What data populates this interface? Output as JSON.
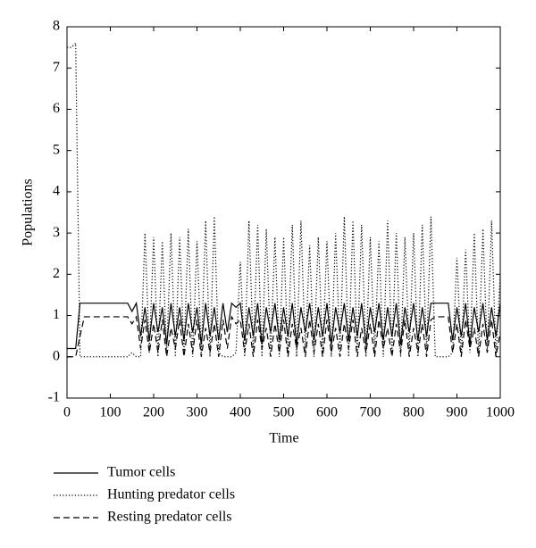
{
  "chart_data": {
    "type": "line",
    "xlabel": "Time",
    "ylabel": "Populations",
    "x": [
      0,
      10,
      20,
      30,
      40,
      50,
      60,
      70,
      80,
      90,
      100,
      110,
      120,
      130,
      140,
      150,
      160,
      170,
      180,
      190,
      200,
      210,
      220,
      230,
      240,
      250,
      260,
      270,
      280,
      290,
      300,
      310,
      320,
      330,
      340,
      350,
      360,
      370,
      380,
      390,
      400,
      410,
      420,
      430,
      440,
      450,
      460,
      470,
      480,
      490,
      500,
      510,
      520,
      530,
      540,
      550,
      560,
      570,
      580,
      590,
      600,
      610,
      620,
      630,
      640,
      650,
      660,
      670,
      680,
      690,
      700,
      710,
      720,
      730,
      740,
      750,
      760,
      770,
      780,
      790,
      800,
      810,
      820,
      830,
      840,
      850,
      860,
      870,
      880,
      890,
      900,
      910,
      920,
      930,
      940,
      950,
      960,
      970,
      980,
      990,
      1000
    ],
    "series": [
      {
        "name": "Tumor cells",
        "color": "#000000",
        "dash": "solid",
        "values": [
          0.2,
          0.2,
          0.2,
          1.3,
          1.3,
          1.3,
          1.3,
          1.3,
          1.3,
          1.3,
          1.3,
          1.3,
          1.3,
          1.3,
          1.3,
          1.1,
          1.3,
          0.5,
          1.2,
          0.4,
          1.3,
          0.6,
          1.2,
          0.3,
          1.3,
          0.5,
          1.2,
          0.4,
          1.3,
          0.6,
          1.2,
          0.3,
          1.3,
          0.5,
          1.2,
          0.4,
          1.3,
          0.6,
          1.3,
          1.2,
          1.3,
          0.4,
          1.2,
          0.5,
          1.3,
          0.3,
          1.2,
          0.6,
          1.3,
          0.4,
          1.2,
          0.5,
          1.3,
          0.3,
          1.2,
          0.6,
          1.3,
          0.4,
          1.2,
          0.5,
          1.3,
          0.3,
          1.2,
          0.6,
          1.3,
          0.4,
          1.2,
          0.5,
          1.3,
          0.3,
          1.2,
          0.6,
          1.3,
          0.4,
          1.2,
          0.5,
          1.3,
          0.3,
          1.2,
          0.6,
          1.3,
          0.4,
          1.2,
          0.5,
          1.3,
          1.3,
          1.3,
          1.3,
          1.3,
          0.4,
          1.2,
          0.5,
          1.3,
          0.3,
          1.2,
          0.6,
          1.3,
          0.4,
          1.2,
          0.5,
          1.3
        ]
      },
      {
        "name": "Hunting predator cells",
        "color": "#000000",
        "dash": "dotted",
        "values": [
          7.5,
          7.5,
          7.6,
          0,
          0,
          0,
          0,
          0,
          0,
          0,
          0,
          0,
          0,
          0,
          0,
          0.1,
          0,
          0,
          3.0,
          0.1,
          2.9,
          0,
          2.8,
          0.1,
          3.0,
          0,
          2.9,
          0.1,
          3.1,
          0,
          2.8,
          0.1,
          3.3,
          0,
          3.4,
          0.1,
          0,
          0,
          0,
          0.1,
          2.3,
          0,
          3.3,
          0.1,
          3.2,
          0,
          3.1,
          0.1,
          2.9,
          0,
          2.9,
          0.1,
          3.2,
          0,
          3.3,
          0.1,
          2.7,
          0,
          2.9,
          0.1,
          2.8,
          0,
          3.0,
          0.1,
          3.4,
          0,
          3.3,
          0.1,
          3.2,
          0,
          2.9,
          0.1,
          2.8,
          0,
          3.3,
          0.1,
          3.0,
          0,
          2.9,
          0.1,
          3.0,
          0,
          3.2,
          0.1,
          3.4,
          0,
          0,
          0,
          0,
          0.1,
          2.4,
          0,
          2.6,
          0.1,
          3.0,
          0,
          3.1,
          0.1,
          3.3,
          0,
          2.0
        ]
      },
      {
        "name": "Resting predator cells",
        "color": "#000000",
        "dash": "dashed",
        "values": [
          0,
          0,
          0,
          0.5,
          0.97,
          0.97,
          0.97,
          0.97,
          0.97,
          0.97,
          0.97,
          0.97,
          0.97,
          0.97,
          0.97,
          0.8,
          0.97,
          0.2,
          0.9,
          0.1,
          0.8,
          0.1,
          0.9,
          0,
          0.7,
          0.2,
          0.9,
          0,
          0.8,
          0.1,
          0.9,
          0,
          0.7,
          0.1,
          0.8,
          0,
          0.9,
          0.2,
          0.97,
          0.8,
          0.9,
          0.1,
          0.8,
          0,
          0.9,
          0.2,
          0.7,
          0,
          0.8,
          0.1,
          0.9,
          0,
          0.8,
          0.2,
          0.7,
          0,
          0.9,
          0.1,
          0.8,
          0,
          0.9,
          0.1,
          0.7,
          0,
          0.8,
          0.2,
          0.9,
          0,
          0.7,
          0.1,
          0.8,
          0,
          0.9,
          0.2,
          0.7,
          0,
          0.8,
          0.1,
          0.9,
          0,
          0.7,
          0.1,
          0.8,
          0,
          0.9,
          0.97,
          0.97,
          0.97,
          0.97,
          0.1,
          0.8,
          0,
          0.9,
          0.2,
          0.7,
          0,
          0.8,
          0.1,
          0.9,
          0,
          0.6
        ]
      }
    ],
    "xlim": [
      0,
      1000
    ],
    "xticks": [
      0,
      100,
      200,
      300,
      400,
      500,
      600,
      700,
      800,
      900,
      1000
    ],
    "ylim": [
      -1,
      8
    ],
    "yticks": [
      -1,
      0,
      1,
      2,
      3,
      4,
      5,
      6,
      7,
      8
    ],
    "grid": false,
    "legend": "below"
  }
}
